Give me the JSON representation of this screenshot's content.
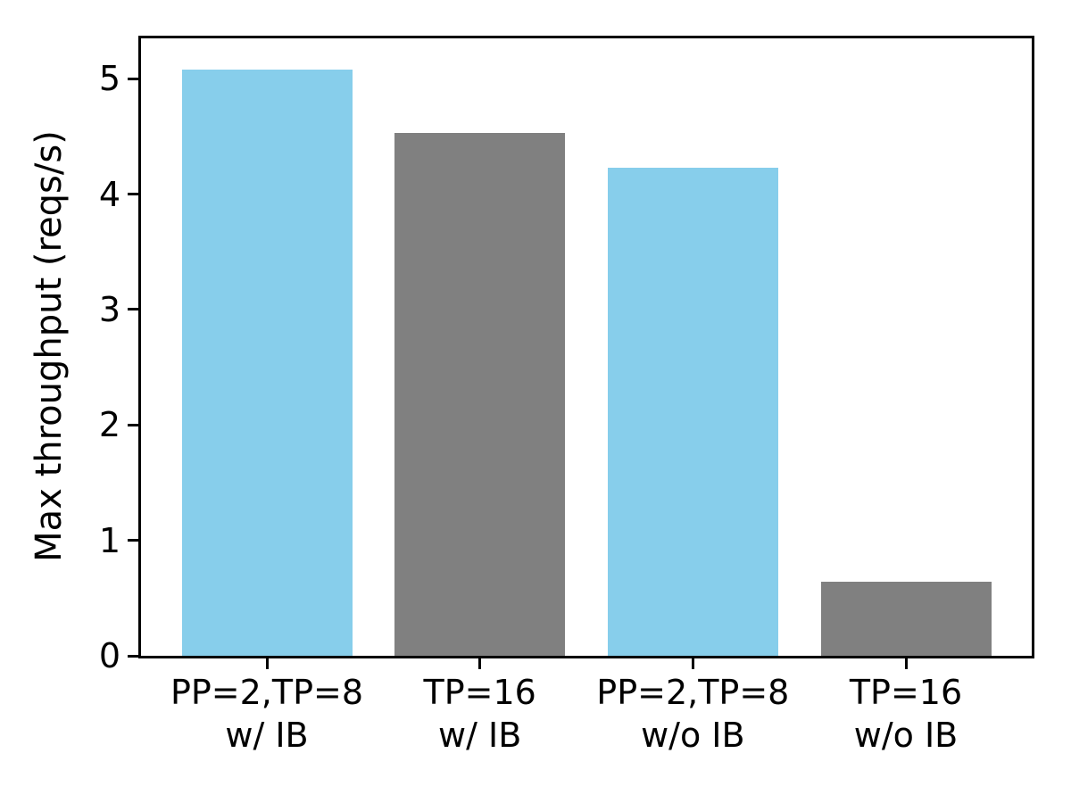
{
  "figure": {
    "background": "#ffffff"
  },
  "chart_data": {
    "type": "bar",
    "title": "",
    "xlabel": "",
    "ylabel": "Max throughput (reqs/s)",
    "categories": [
      "PP=2,TP=8\nw/ IB",
      "TP=16\nw/ IB",
      "PP=2,TP=8\nw/o IB",
      "TP=16\nw/o IB"
    ],
    "values": [
      5.08,
      4.53,
      4.23,
      0.64
    ],
    "bar_colors": [
      "#87CEEB",
      "#808080",
      "#87CEEB",
      "#808080"
    ],
    "ylim": [
      0,
      5.35
    ],
    "yticks": [
      0,
      1,
      2,
      3,
      4,
      5
    ],
    "grid": false,
    "legend_position": "none",
    "axis_color": "#000000",
    "text_color": "#000000"
  }
}
